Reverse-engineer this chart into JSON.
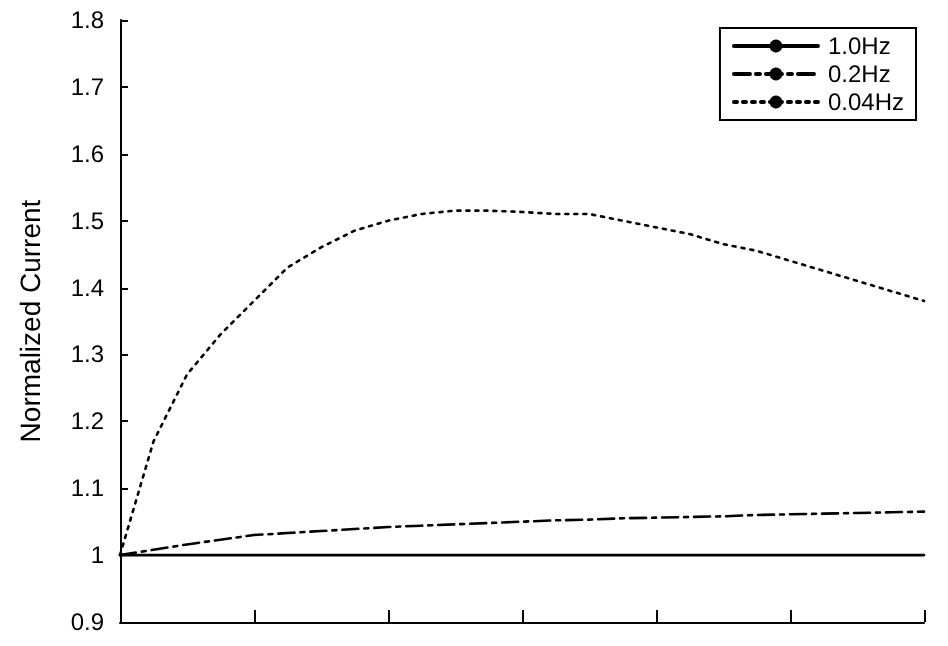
{
  "chart_data": {
    "type": "line",
    "ylabel": "Normalized Current",
    "categories": [
      null,
      null,
      null,
      null,
      null,
      null,
      null,
      null,
      null,
      null,
      null,
      null,
      null,
      null,
      null,
      null,
      null,
      null,
      null,
      null,
      null,
      null,
      null,
      null,
      null
    ],
    "series": [
      {
        "name": "1.0Hz",
        "color": "#000000",
        "line_style": "solid",
        "values": [
          1,
          1,
          1,
          1,
          1,
          1,
          1,
          1,
          1,
          1,
          1,
          1,
          1,
          1,
          1,
          1,
          1,
          1,
          1,
          1,
          1,
          1,
          1,
          1,
          1
        ]
      },
      {
        "name": "0.2Hz",
        "color": "#000000",
        "line_style": "dashed",
        "values": [
          1,
          1.008,
          1.016,
          1.023,
          1.03,
          1.033,
          1.036,
          1.039,
          1.042,
          1.044,
          1.046,
          1.048,
          1.05,
          1.052,
          1.053,
          1.055,
          1.056,
          1.057,
          1.058,
          1.06,
          1.061,
          1.062,
          1.063,
          1.064,
          1.065
        ]
      },
      {
        "name": "0.04Hz",
        "color": "#000000",
        "line_style": "dotted",
        "values": [
          1,
          1.17,
          1.27,
          1.33,
          1.38,
          1.43,
          1.46,
          1.485,
          1.5,
          1.51,
          1.515,
          1.515,
          1.513,
          1.51,
          1.51,
          1.5,
          1.49,
          1.48,
          1.465,
          1.455,
          1.44,
          1.425,
          1.41,
          1.395,
          1.38
        ]
      }
    ],
    "ylim": [
      0.9,
      1.8
    ],
    "yticks": [
      0.9,
      1,
      1.1,
      1.2,
      1.3,
      1.4,
      1.5,
      1.6,
      1.7,
      1.8
    ],
    "grid": false,
    "legend": "top right",
    "marker": "none",
    "tick_labels": "y"
  }
}
